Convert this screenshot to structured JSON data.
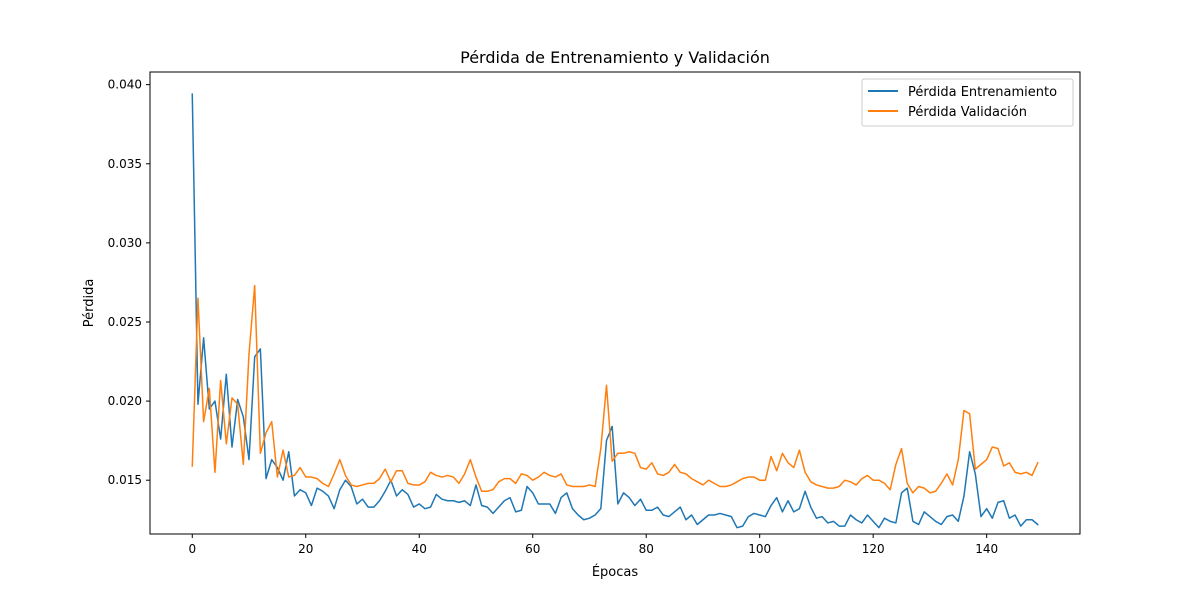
{
  "chart_data": {
    "type": "line",
    "title": "Pérdida de Entrenamiento y Validación",
    "xlabel": "Épocas",
    "ylabel": "Pérdida",
    "xlim": [
      -7.45,
      156.45
    ],
    "ylim": [
      0.0116,
      0.0408
    ],
    "xticks": [
      0,
      20,
      40,
      60,
      80,
      100,
      120,
      140
    ],
    "yticks": [
      0.015,
      0.02,
      0.025,
      0.03,
      0.035,
      0.04
    ],
    "ytick_labels": [
      "0.015",
      "0.020",
      "0.025",
      "0.030",
      "0.035",
      "0.040"
    ],
    "grid": false,
    "legend_position": "upper right",
    "series": [
      {
        "name": "Pérdida Entrenamiento",
        "color": "#1f77b4",
        "values": [
          0.0394,
          0.0198,
          0.024,
          0.0195,
          0.02,
          0.0176,
          0.0217,
          0.0171,
          0.0201,
          0.019,
          0.0163,
          0.0228,
          0.0233,
          0.0151,
          0.0163,
          0.0158,
          0.015,
          0.0168,
          0.014,
          0.0144,
          0.0142,
          0.0134,
          0.0145,
          0.0143,
          0.014,
          0.0132,
          0.0144,
          0.015,
          0.0146,
          0.0135,
          0.0138,
          0.0133,
          0.0133,
          0.0137,
          0.0143,
          0.015,
          0.014,
          0.0144,
          0.0141,
          0.0133,
          0.0135,
          0.0132,
          0.0133,
          0.0141,
          0.0138,
          0.0137,
          0.0137,
          0.0136,
          0.0137,
          0.0134,
          0.0147,
          0.0134,
          0.0133,
          0.0129,
          0.0133,
          0.0137,
          0.0139,
          0.013,
          0.0131,
          0.0146,
          0.0142,
          0.0135,
          0.0135,
          0.0135,
          0.0129,
          0.0139,
          0.0142,
          0.0132,
          0.0128,
          0.0125,
          0.0126,
          0.0128,
          0.0132,
          0.0175,
          0.0184,
          0.0135,
          0.0142,
          0.0139,
          0.0134,
          0.0138,
          0.0131,
          0.0131,
          0.0133,
          0.0128,
          0.0127,
          0.013,
          0.0133,
          0.0125,
          0.0128,
          0.0122,
          0.0125,
          0.0128,
          0.0128,
          0.0129,
          0.0128,
          0.0127,
          0.012,
          0.0121,
          0.0127,
          0.0129,
          0.0128,
          0.0127,
          0.0134,
          0.0139,
          0.013,
          0.0137,
          0.013,
          0.0132,
          0.0143,
          0.0133,
          0.0126,
          0.0127,
          0.0123,
          0.0124,
          0.0121,
          0.0121,
          0.0128,
          0.0125,
          0.0123,
          0.0128,
          0.0124,
          0.012,
          0.0126,
          0.0124,
          0.0123,
          0.0142,
          0.0145,
          0.0124,
          0.0122,
          0.013,
          0.0127,
          0.0124,
          0.0122,
          0.0127,
          0.0128,
          0.0124,
          0.014,
          0.0168,
          0.0154,
          0.0127,
          0.0132,
          0.0126,
          0.0136,
          0.0137,
          0.0126,
          0.0128,
          0.0121,
          0.0125,
          0.0125,
          0.0122
        ]
      },
      {
        "name": "Pérdida Validación",
        "color": "#ff7f0e",
        "values": [
          0.0159,
          0.0265,
          0.0187,
          0.0208,
          0.0155,
          0.0213,
          0.0173,
          0.0202,
          0.0198,
          0.016,
          0.023,
          0.0273,
          0.0167,
          0.018,
          0.0187,
          0.0152,
          0.0169,
          0.0152,
          0.0153,
          0.0158,
          0.0152,
          0.0152,
          0.0151,
          0.0148,
          0.0146,
          0.0154,
          0.0163,
          0.0153,
          0.0147,
          0.0146,
          0.0147,
          0.0148,
          0.0148,
          0.0151,
          0.0157,
          0.0149,
          0.0156,
          0.0156,
          0.0148,
          0.0147,
          0.0147,
          0.0149,
          0.0155,
          0.0153,
          0.0152,
          0.0153,
          0.0152,
          0.0148,
          0.0154,
          0.0163,
          0.0152,
          0.0143,
          0.0143,
          0.0144,
          0.0149,
          0.0151,
          0.0151,
          0.0148,
          0.0154,
          0.0153,
          0.015,
          0.0152,
          0.0155,
          0.0153,
          0.0152,
          0.0154,
          0.0147,
          0.0146,
          0.0146,
          0.0146,
          0.0147,
          0.0146,
          0.017,
          0.021,
          0.0162,
          0.0167,
          0.0167,
          0.0168,
          0.0167,
          0.0158,
          0.0157,
          0.0161,
          0.0154,
          0.0153,
          0.0155,
          0.016,
          0.0155,
          0.0154,
          0.0151,
          0.0149,
          0.0147,
          0.015,
          0.0148,
          0.0146,
          0.0146,
          0.0147,
          0.0149,
          0.0151,
          0.0152,
          0.0152,
          0.015,
          0.015,
          0.0165,
          0.0156,
          0.0167,
          0.0161,
          0.0158,
          0.0169,
          0.0155,
          0.0149,
          0.0147,
          0.0146,
          0.0145,
          0.0145,
          0.0146,
          0.015,
          0.0149,
          0.0147,
          0.0151,
          0.0153,
          0.015,
          0.015,
          0.0148,
          0.0144,
          0.016,
          0.017,
          0.0148,
          0.0142,
          0.0146,
          0.0145,
          0.0142,
          0.0143,
          0.0148,
          0.0154,
          0.0147,
          0.0163,
          0.0194,
          0.0192,
          0.0157,
          0.016,
          0.0163,
          0.0171,
          0.017,
          0.0159,
          0.0161,
          0.0155,
          0.0154,
          0.0155,
          0.0153,
          0.0161
        ]
      }
    ]
  }
}
